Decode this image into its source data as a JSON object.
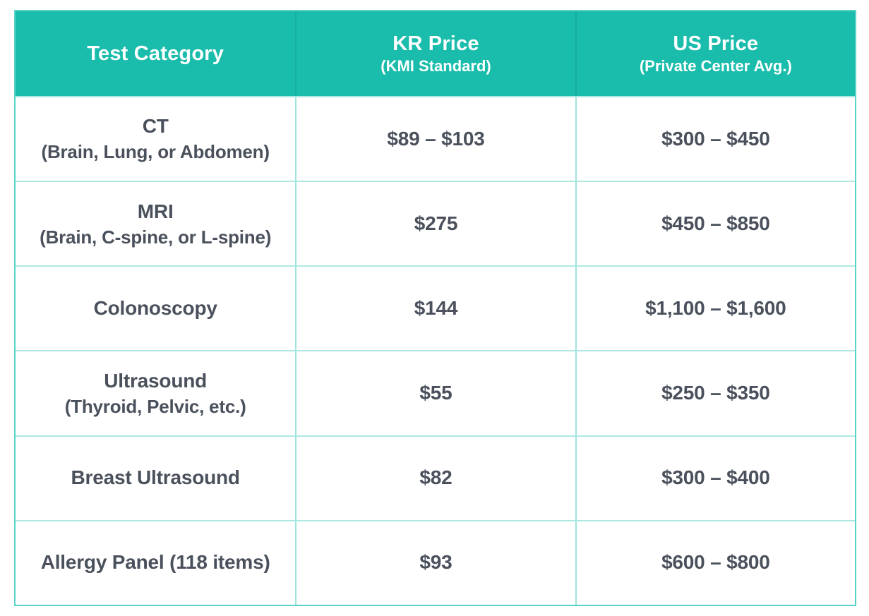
{
  "colors": {
    "header_bg": "#1abcac",
    "header_text": "#ffffff",
    "body_text": "#4a515c",
    "outer_border": "#59d3c7",
    "grid_line": "#ade9e2",
    "header_divider": "#17af9f"
  },
  "table": {
    "header": {
      "col1": {
        "label": "Test Category",
        "sublabel": ""
      },
      "col2": {
        "label": "KR Price",
        "sublabel": "(KMI Standard)"
      },
      "col3": {
        "label": "US Price",
        "sublabel": "(Private Center Avg.)"
      }
    },
    "rows": [
      {
        "category": "CT",
        "category_detail": "(Brain, Lung, or Abdomen)",
        "kr_price": "$89 – $103",
        "us_price": "$300 – $450"
      },
      {
        "category": "MRI",
        "category_detail": "(Brain, C-spine, or L-spine)",
        "kr_price": "$275",
        "us_price": "$450 – $850"
      },
      {
        "category": "Colonoscopy",
        "category_detail": "",
        "kr_price": "$144",
        "us_price": "$1,100 – $1,600"
      },
      {
        "category": "Ultrasound",
        "category_detail": "(Thyroid, Pelvic, etc.)",
        "kr_price": "$55",
        "us_price": "$250 – $350"
      },
      {
        "category": "Breast Ultrasound",
        "category_detail": "",
        "kr_price": "$82",
        "us_price": "$300 – $400"
      },
      {
        "category": "Allergy Panel (118 items)",
        "category_detail": "",
        "kr_price": "$93",
        "us_price": "$600 – $800"
      }
    ]
  },
  "chart_data": {
    "type": "table",
    "title": "",
    "columns": [
      "Test Category",
      "KR Price (KMI Standard)",
      "US Price (Private Center Avg.)"
    ],
    "rows": [
      [
        "CT (Brain, Lung, or Abdomen)",
        "$89 – $103",
        "$300 – $450"
      ],
      [
        "MRI (Brain, C-spine, or L-spine)",
        "$275",
        "$450 – $850"
      ],
      [
        "Colonoscopy",
        "$144",
        "$1,100 – $1,600"
      ],
      [
        "Ultrasound (Thyroid, Pelvic, etc.)",
        "$55",
        "$250 – $350"
      ],
      [
        "Breast Ultrasound",
        "$82",
        "$300 – $400"
      ],
      [
        "Allergy Panel (118 items)",
        "$93",
        "$600 – $800"
      ]
    ]
  }
}
